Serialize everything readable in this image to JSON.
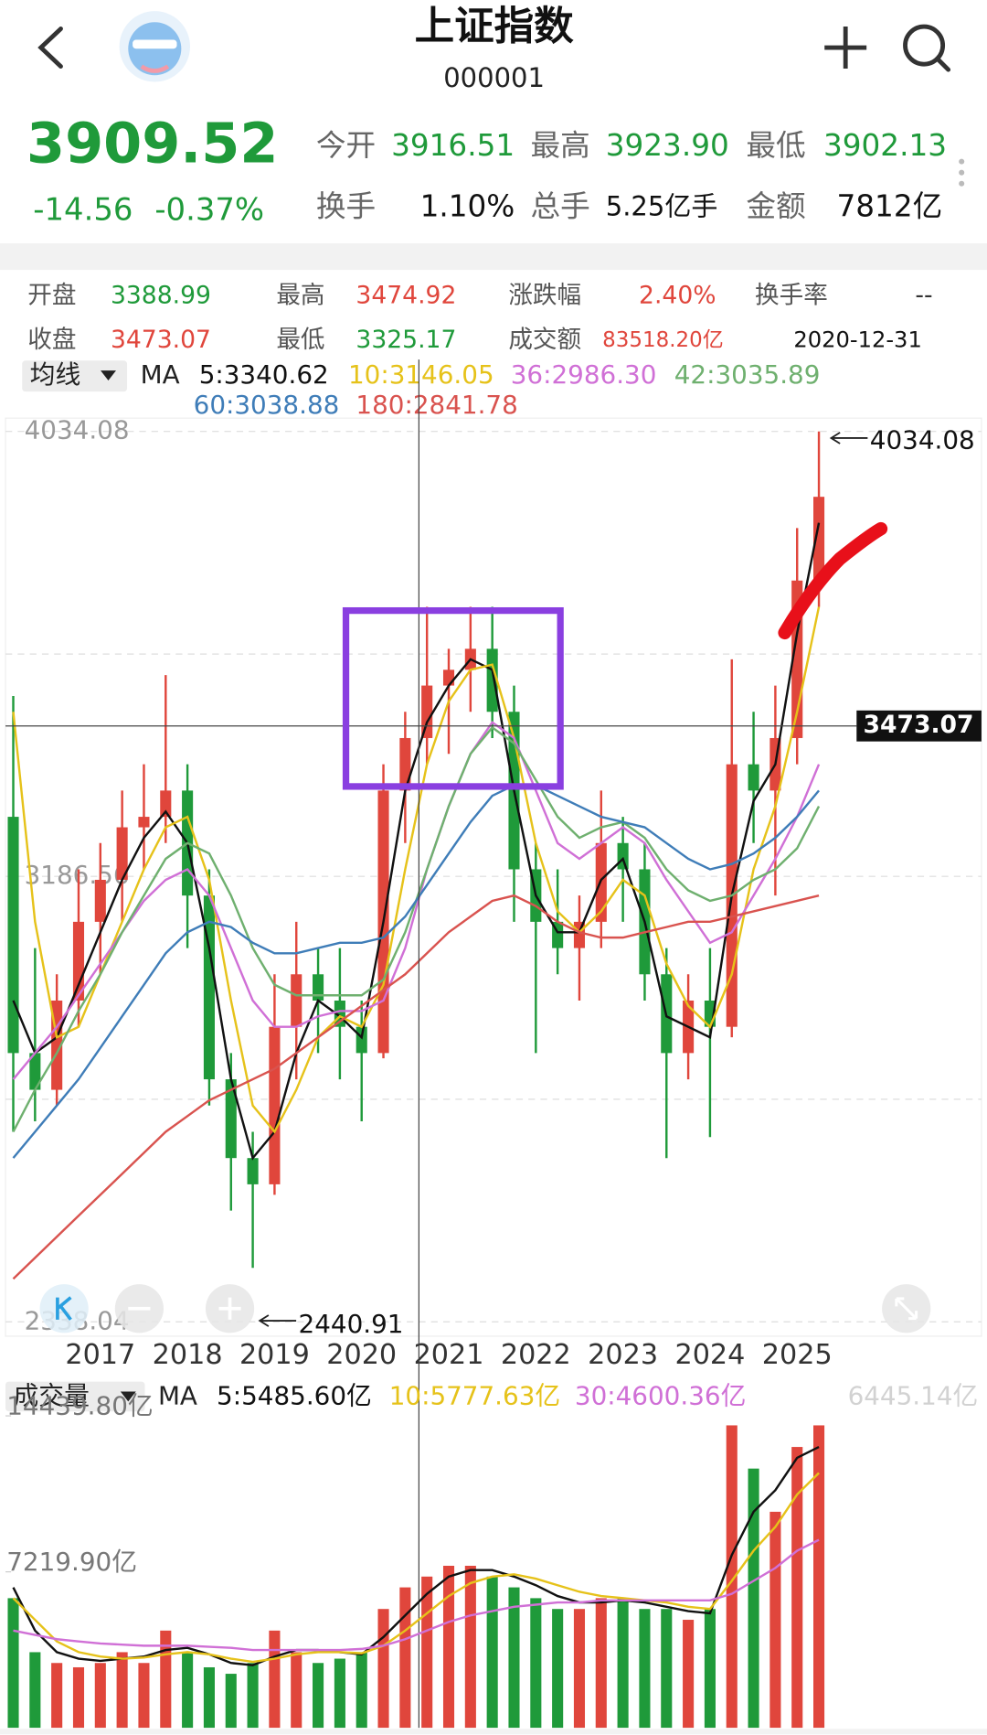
{
  "header": {
    "title": "上证指数",
    "code": "000001"
  },
  "quote": {
    "price": "3909.52",
    "change": "-14.56",
    "change_pct": "-0.37%",
    "stats": [
      [
        {
          "label": "今开",
          "value": "3916.51"
        },
        {
          "label": "最高",
          "value": "3923.90"
        },
        {
          "label": "最低",
          "value": "3902.13"
        }
      ],
      [
        {
          "label": "换手",
          "value": "1.10%"
        },
        {
          "label": "总手",
          "value": "5.25亿手"
        },
        {
          "label": "金额",
          "value": "7812亿"
        }
      ]
    ]
  },
  "info": [
    [
      {
        "label": "开盘",
        "value": "3388.99"
      },
      {
        "label": "最高",
        "value": "3474.92"
      },
      {
        "label": "涨跌幅",
        "value": "2.40%"
      },
      {
        "label": "换手率",
        "value": "--"
      }
    ],
    [
      {
        "label": "收盘",
        "value": "3473.07"
      },
      {
        "label": "最低",
        "value": "3325.17"
      },
      {
        "label": "成交额",
        "value": "83518.20亿"
      },
      {
        "label": "",
        "value": "2020-12-31"
      }
    ]
  ],
  "chart_data": [
    {
      "type": "candlestick",
      "legend_button": "均线",
      "ma_label": "MA",
      "up_color": "#e0463c",
      "down_color": "#1f9a3a",
      "categories": [
        null,
        null,
        null,
        null,
        "2017",
        null,
        null,
        null,
        "2018",
        null,
        null,
        null,
        "2019",
        null,
        null,
        null,
        "2020",
        null,
        null,
        null,
        "2021",
        null,
        null,
        null,
        "2022",
        null,
        null,
        null,
        "2023",
        null,
        null,
        null,
        "2024",
        null,
        null,
        null,
        "2025",
        null
      ],
      "open": [
        3300,
        2850,
        2780,
        2950,
        3100,
        3180,
        3280,
        3300,
        3350,
        3150,
        2800,
        2650,
        2600,
        2900,
        3000,
        2950,
        2900,
        2850,
        3350,
        3450,
        3550,
        3580,
        3620,
        3500,
        3200,
        3100,
        3050,
        3100,
        3250,
        3200,
        3000,
        2850,
        2950,
        2900,
        3400,
        3350,
        3450,
        3750
      ],
      "high": [
        3530,
        3050,
        3000,
        3200,
        3250,
        3350,
        3400,
        3570,
        3400,
        3200,
        2850,
        2700,
        3000,
        3100,
        3050,
        3050,
        2950,
        3400,
        3500,
        3700,
        3620,
        3700,
        3700,
        3550,
        3250,
        3200,
        3150,
        3350,
        3300,
        3250,
        3050,
        3000,
        3050,
        3600,
        3500,
        3550,
        3850,
        4034.08
      ],
      "low": [
        2700,
        2720,
        2750,
        2900,
        3000,
        3100,
        3200,
        3250,
        3050,
        2750,
        2550,
        2440.91,
        2580,
        2800,
        2850,
        2800,
        2720,
        2840,
        3250,
        3400,
        3420,
        3500,
        3450,
        3100,
        2850,
        3000,
        2950,
        3050,
        3100,
        2950,
        2650,
        2800,
        2690,
        2880,
        3250,
        3150,
        3400,
        3700
      ],
      "close": [
        2850,
        2780,
        2950,
        3100,
        3180,
        3280,
        3300,
        3350,
        3150,
        2800,
        2650,
        2600,
        2900,
        3000,
        2950,
        2900,
        2850,
        3350,
        3450,
        3550,
        3580,
        3620,
        3500,
        3200,
        3100,
        3050,
        3100,
        3250,
        3200,
        3000,
        2850,
        2950,
        2900,
        3400,
        3350,
        3450,
        3750,
        3909.52
      ],
      "series": [
        {
          "name": "5:3340.62",
          "color": "#111111",
          "values": [
            2950,
            2850,
            2880,
            2980,
            3080,
            3180,
            3260,
            3310,
            3250,
            3050,
            2800,
            2650,
            2700,
            2850,
            2950,
            2920,
            2880,
            3100,
            3350,
            3480,
            3550,
            3600,
            3580,
            3350,
            3150,
            3080,
            3080,
            3180,
            3220,
            3100,
            2920,
            2900,
            2880,
            3150,
            3330,
            3400,
            3650,
            3860
          ]
        },
        {
          "name": "10:3146.05",
          "color": "#e6c21a",
          "values": [
            3500,
            3100,
            2880,
            2900,
            3000,
            3100,
            3200,
            3280,
            3300,
            3180,
            2950,
            2750,
            2700,
            2780,
            2880,
            2920,
            2900,
            2980,
            3200,
            3400,
            3520,
            3580,
            3590,
            3450,
            3250,
            3120,
            3080,
            3120,
            3180,
            3150,
            3020,
            2940,
            2900,
            3000,
            3200,
            3320,
            3500,
            3700
          ]
        },
        {
          "name": "36:2986.30",
          "color": "#d070d6",
          "values": [
            2800,
            2850,
            2900,
            2960,
            3020,
            3080,
            3140,
            3180,
            3200,
            3150,
            3050,
            2950,
            2900,
            2900,
            2920,
            2930,
            2930,
            2950,
            3050,
            3200,
            3320,
            3420,
            3480,
            3450,
            3350,
            3250,
            3220,
            3250,
            3280,
            3250,
            3180,
            3120,
            3060,
            3080,
            3150,
            3220,
            3300,
            3400
          ]
        },
        {
          "name": "42:3035.89",
          "color": "#6fb06f",
          "values": [
            2700,
            2780,
            2850,
            2930,
            3000,
            3080,
            3150,
            3220,
            3250,
            3230,
            3150,
            3050,
            2980,
            2960,
            2960,
            2960,
            2960,
            2990,
            3080,
            3200,
            3320,
            3420,
            3470,
            3440,
            3370,
            3300,
            3260,
            3280,
            3290,
            3260,
            3200,
            3160,
            3140,
            3150,
            3180,
            3200,
            3240,
            3320
          ]
        },
        {
          "name": "60:3038.88",
          "color": "#3f7db8",
          "values": [
            2650,
            2700,
            2750,
            2800,
            2860,
            2920,
            2980,
            3040,
            3080,
            3100,
            3090,
            3060,
            3040,
            3040,
            3050,
            3060,
            3060,
            3070,
            3110,
            3170,
            3230,
            3290,
            3340,
            3360,
            3360,
            3340,
            3320,
            3300,
            3290,
            3280,
            3250,
            3220,
            3200,
            3210,
            3230,
            3260,
            3300,
            3350
          ]
        },
        {
          "name": "180:2841.78",
          "color": "#d9534f",
          "values": [
            2420,
            2460,
            2500,
            2540,
            2580,
            2620,
            2660,
            2700,
            2730,
            2760,
            2780,
            2800,
            2820,
            2850,
            2880,
            2910,
            2940,
            2970,
            3000,
            3040,
            3080,
            3110,
            3140,
            3150,
            3130,
            3100,
            3080,
            3070,
            3070,
            3080,
            3090,
            3100,
            3100,
            3110,
            3120,
            3130,
            3140,
            3150
          ]
        }
      ],
      "ylim": [
        2338.04,
        4034.08
      ],
      "yticks": [
        4034.08,
        3186.56,
        2338.04
      ],
      "grid": true,
      "crosshair": 3473.07,
      "annotations": [
        "4034.08",
        "2440.91"
      ]
    },
    {
      "type": "bar",
      "legend_button": "成交量",
      "ma_label": "MA",
      "current_label": "6445.14亿",
      "values": [
        6000,
        3500,
        3000,
        2800,
        3000,
        3500,
        3000,
        4500,
        3500,
        2800,
        2500,
        3000,
        4500,
        3500,
        3000,
        3200,
        3500,
        5500,
        6500,
        7000,
        7500,
        7500,
        7000,
        6500,
        6000,
        5500,
        5500,
        6000,
        6000,
        5500,
        5500,
        5000,
        5500,
        14000,
        12000,
        10000,
        13000,
        14000
      ],
      "series": [
        {
          "name": "5:5485.60亿",
          "color": "#111111",
          "values": [
            6500,
            4500,
            3500,
            3200,
            3100,
            3200,
            3300,
            3600,
            3700,
            3400,
            3000,
            2900,
            3300,
            3600,
            3600,
            3500,
            3400,
            4200,
            5200,
            6200,
            7000,
            7300,
            7300,
            7000,
            6600,
            6100,
            5800,
            5800,
            5900,
            5800,
            5600,
            5400,
            5300,
            8000,
            10000,
            11000,
            12500,
            13000
          ]
        },
        {
          "name": "10:5777.63亿",
          "color": "#e6c21a",
          "values": [
            6000,
            5000,
            4000,
            3500,
            3300,
            3200,
            3250,
            3400,
            3500,
            3400,
            3200,
            3050,
            3200,
            3400,
            3500,
            3500,
            3450,
            3800,
            4500,
            5300,
            6100,
            6700,
            7000,
            7100,
            6900,
            6600,
            6300,
            6100,
            6000,
            5900,
            5800,
            5600,
            5500,
            6800,
            8200,
            9300,
            10800,
            11800
          ]
        },
        {
          "name": "30:4600.36亿",
          "color": "#d070d6",
          "values": [
            4500,
            4300,
            4100,
            4000,
            3900,
            3850,
            3800,
            3800,
            3800,
            3750,
            3700,
            3600,
            3600,
            3600,
            3600,
            3600,
            3650,
            3800,
            4100,
            4500,
            4900,
            5200,
            5400,
            5600,
            5700,
            5800,
            5800,
            5900,
            5900,
            5900,
            5900,
            5900,
            5900,
            6200,
            6800,
            7400,
            8200,
            8700
          ]
        }
      ],
      "ylim": [
        0,
        14439.8
      ],
      "yticks": [
        {
          "value": 14439.8,
          "label": "14439.80亿"
        },
        {
          "value": 7219.9,
          "label": "7219.90亿"
        }
      ]
    }
  ]
}
